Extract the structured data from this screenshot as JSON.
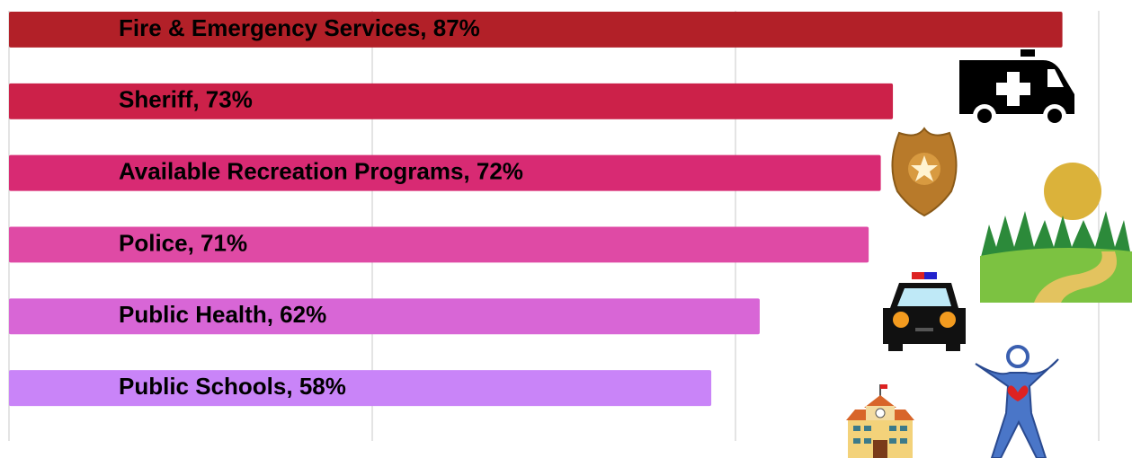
{
  "chart_data": {
    "type": "bar",
    "orientation": "horizontal",
    "categories": [
      "Fire & Emergency Services, 87%",
      "Sheriff, 73%",
      "Available Recreation Programs, 72%",
      "Police, 71%",
      "Public Health, 62%",
      "Public Schools, 58%"
    ],
    "values": [
      87,
      73,
      72,
      71,
      62,
      58
    ],
    "colors": [
      "#b22028",
      "#cc2149",
      "#d82a73",
      "#df4aa5",
      "#d866d6",
      "#c984f8"
    ],
    "xlim": [
      0,
      90
    ],
    "xticks": [
      0,
      30,
      60,
      90
    ],
    "grid": true
  }
}
